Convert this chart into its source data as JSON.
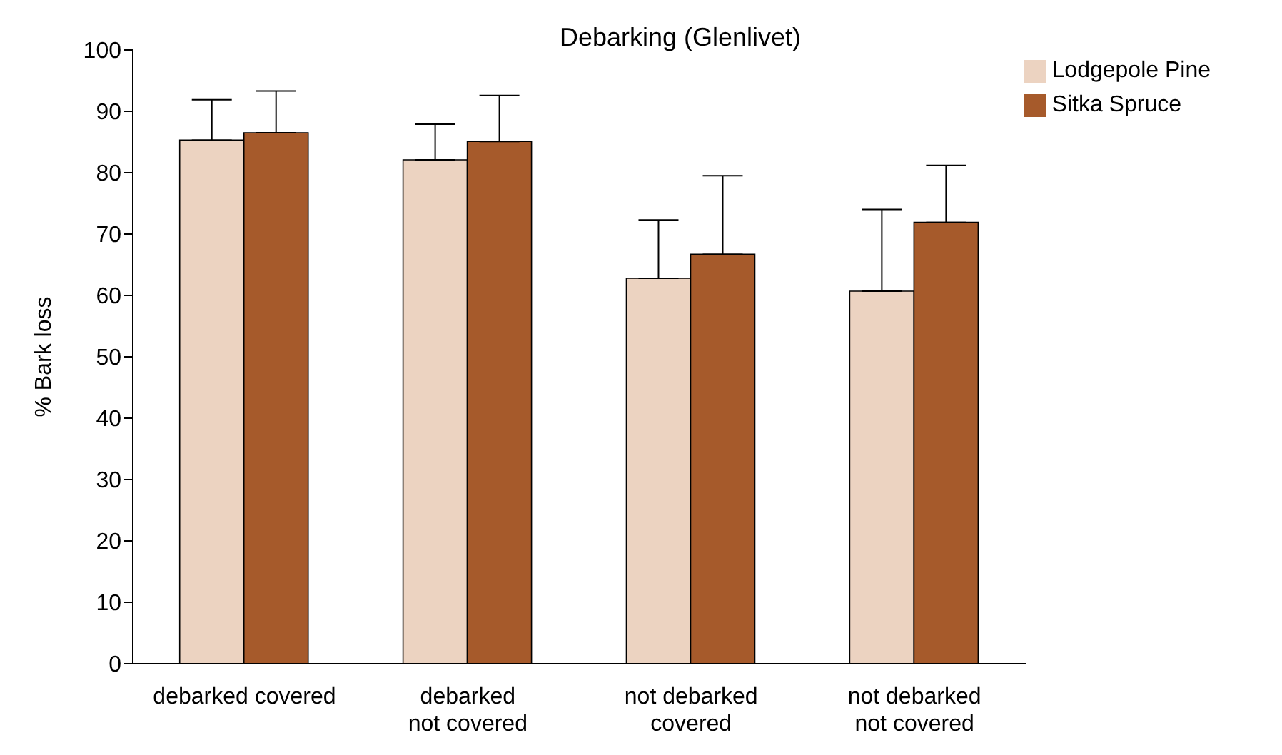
{
  "chart_data": {
    "type": "bar",
    "title": "Debarking (Glenlivet)",
    "ylabel": "% Bark loss",
    "categories": [
      "debarked covered",
      "debarked\nnot covered",
      "not debarked\ncovered",
      "not debarked\nnot covered"
    ],
    "series": [
      {
        "name": "Lodgepole Pine",
        "color": "#ecd3c1",
        "values": [
          85.3,
          82.1,
          62.8,
          60.7
        ],
        "errors": [
          [
            85.3,
            91.9
          ],
          [
            82.1,
            87.9
          ],
          [
            62.8,
            72.3
          ],
          [
            60.7,
            74
          ]
        ]
      },
      {
        "name": "Sitka Spruce",
        "color": "#a65a2b",
        "values": [
          86.5,
          85.1,
          66.7,
          71.9
        ],
        "errors": [
          [
            86.5,
            93.3
          ],
          [
            85.1,
            92.6
          ],
          [
            66.7,
            79.5
          ],
          [
            71.9,
            81.2
          ]
        ]
      }
    ],
    "ylim": [
      0,
      100
    ],
    "yticks": [
      0,
      10,
      20,
      30,
      40,
      50,
      60,
      70,
      80,
      90,
      100
    ],
    "grid": false,
    "legend": "top right"
  }
}
